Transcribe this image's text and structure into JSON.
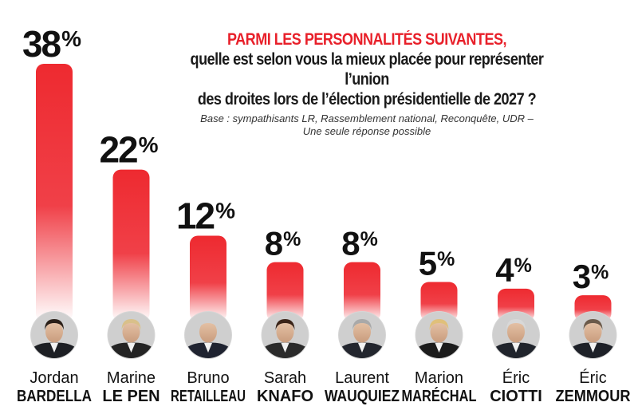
{
  "header": {
    "title_line1": "PARMI LES PERSONNALITÉS SUIVANTES,",
    "title_line2": "quelle est selon vous la mieux placée pour représenter l’union",
    "title_line3": "des droites lors de l’élection présidentielle de 2027 ?",
    "base_line1": "Base : sympathisants LR, Rassemblement national, Reconquête, UDR –",
    "base_line2": "Une seule réponse possible"
  },
  "colors": {
    "bar_top": "#ee2a30",
    "bar_bottom": "#ffffff",
    "accent": "#e8202a",
    "text": "#111111"
  },
  "chart_data": {
    "type": "bar",
    "title": "PARMI LES PERSONNALITÉS SUIVANTES, quelle est selon vous la mieux placée pour représenter l’union des droites lors de l’élection présidentielle de 2027 ?",
    "categories": [
      "Jordan BARDELLA",
      "Marine LE PEN",
      "Bruno RETAILLEAU",
      "Sarah KNAFO",
      "Laurent WAUQUIEZ",
      "Marion MARÉCHAL",
      "Éric CIOTTI",
      "Éric ZEMMOUR"
    ],
    "first_names": [
      "Jordan",
      "Marine",
      "Bruno",
      "Sarah",
      "Laurent",
      "Marion",
      "Éric",
      "Éric"
    ],
    "last_names": [
      "BARDELLA",
      "LE PEN",
      "RETAILLEAU",
      "KNAFO",
      "WAUQUIEZ",
      "MARÉCHAL",
      "CIOTTI",
      "ZEMMOUR"
    ],
    "values": [
      38,
      22,
      12,
      8,
      8,
      5,
      4,
      3
    ],
    "value_labels": [
      "38",
      "22",
      "12",
      "8",
      "8",
      "5",
      "4",
      "3"
    ],
    "unit": "%",
    "xlabel": "",
    "ylabel": "",
    "ylim": [
      0,
      38
    ],
    "grid": false,
    "legend": "none"
  }
}
